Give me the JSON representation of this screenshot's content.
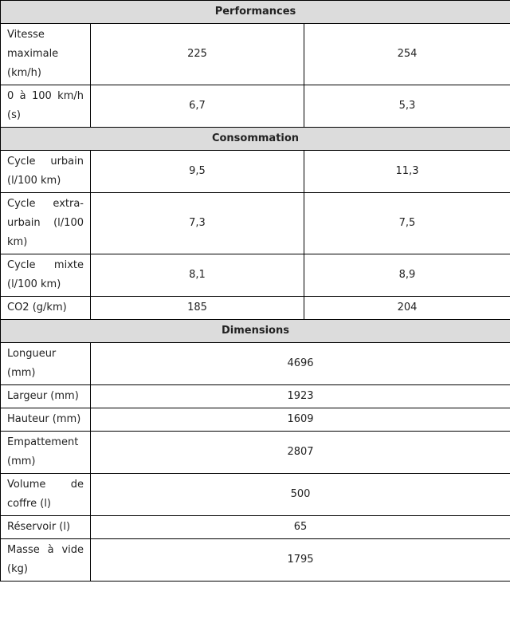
{
  "sections": [
    {
      "title": "Performances",
      "rows": [
        {
          "label": "Vitesse maximale (km/h)",
          "values": [
            "225",
            "254"
          ]
        },
        {
          "label": "0 à 100 km/h (s)",
          "values": [
            "6,7",
            "5,3"
          ]
        }
      ]
    },
    {
      "title": "Consommation",
      "rows": [
        {
          "label": "Cycle urbain (l/100 km)",
          "values": [
            "9,5",
            "11,3"
          ]
        },
        {
          "label": "Cycle extra-urbain (l/100 km)",
          "values": [
            "7,3",
            "7,5"
          ]
        },
        {
          "label": "Cycle mixte (l/100 km)",
          "values": [
            "8,1",
            "8,9"
          ]
        },
        {
          "label": "CO2 (g/km)",
          "values": [
            "185",
            "204"
          ]
        }
      ]
    },
    {
      "title": "Dimensions",
      "rows": [
        {
          "label": "Longueur (mm)",
          "values": [
            "4696"
          ]
        },
        {
          "label": "Largeur (mm)",
          "values": [
            "1923"
          ]
        },
        {
          "label": "Hauteur (mm)",
          "values": [
            "1609"
          ]
        },
        {
          "label": "Empattement (mm)",
          "values": [
            "2807"
          ]
        },
        {
          "label": "Volume de coffre (l)",
          "values": [
            "500"
          ]
        },
        {
          "label": "Réservoir (l)",
          "values": [
            "65"
          ]
        },
        {
          "label": "Masse à vide (kg)",
          "values": [
            "1795"
          ]
        }
      ]
    }
  ]
}
